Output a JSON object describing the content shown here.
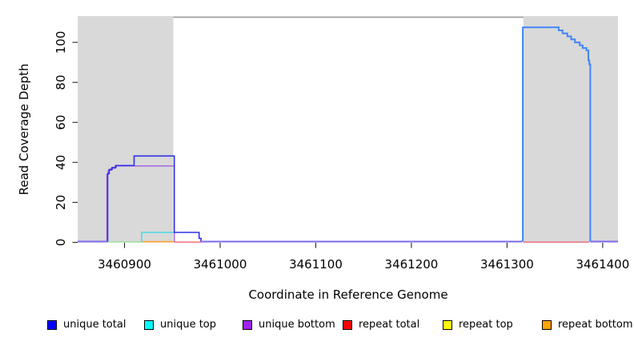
{
  "chart_data": {
    "type": "line",
    "step": true,
    "title": "",
    "xlabel": "Coordinate in Reference Genome",
    "ylabel": "Read Coverage Depth",
    "xlim": [
      3460851,
      3461416
    ],
    "ylim": [
      0,
      113
    ],
    "x_ticks": [
      3460900,
      3461000,
      3461100,
      3461200,
      3461300,
      3461400
    ],
    "y_ticks": [
      0,
      20,
      40,
      60,
      80,
      100
    ],
    "grid": false,
    "legend_position": "bottom",
    "colors": {
      "plot_shade": "#d9d9d9",
      "frame_line": "#909090",
      "axis": "#262626",
      "text": "#000000"
    },
    "shaded_regions": [
      {
        "name": "left-repeat-shade",
        "x0": 3460851,
        "x1": 3460951,
        "color": "#d9d9d9"
      },
      {
        "name": "right-repeat-shade",
        "x0": 3461317,
        "x1": 3461416,
        "color": "#d9d9d9"
      }
    ],
    "frame_top_line": {
      "x0": 3460951,
      "x1": 3461317,
      "y": 112.6,
      "color": "#909090"
    },
    "series": [
      {
        "name": "unique-top-repeat-top-blend-baseline",
        "color": "#8fdc8f",
        "width": 1.3,
        "points": [
          [
            3460882,
            0.2
          ],
          [
            3460919,
            0.2
          ]
        ]
      },
      {
        "name": "repeat-bottom",
        "color": "#ff9d2e",
        "width": 1.6,
        "points": [
          [
            3460919,
            0.3
          ],
          [
            3460952,
            0.3
          ]
        ]
      },
      {
        "name": "repeat-total-left",
        "color": "#e8566a",
        "width": 1.3,
        "points": [
          [
            3460952,
            0.15
          ],
          [
            3460980,
            0.15
          ]
        ]
      },
      {
        "name": "repeat-total-right",
        "color": "#e8566a",
        "width": 1.3,
        "points": [
          [
            3461317,
            0.15
          ],
          [
            3461386,
            0.15
          ]
        ]
      },
      {
        "name": "unique-top",
        "color": "#45d9e6",
        "width": 1.5,
        "points": [
          [
            3460918,
            0.3
          ],
          [
            3460918,
            5
          ],
          [
            3460952,
            5
          ]
        ]
      },
      {
        "name": "unique-bottom",
        "color": "#a868e6",
        "width": 1.5,
        "points": [
          [
            3460881.6,
            0
          ],
          [
            3460881.6,
            34
          ],
          [
            3460883,
            34
          ],
          [
            3460883,
            36
          ],
          [
            3460886,
            36
          ],
          [
            3460886,
            37
          ],
          [
            3460890,
            37
          ],
          [
            3460890,
            38.2
          ],
          [
            3460952,
            38.2
          ],
          [
            3460952,
            0
          ]
        ]
      },
      {
        "name": "unique-total-left",
        "color": "#2f2fe8",
        "width": 1.6,
        "points": [
          [
            3460882.4,
            0.4
          ],
          [
            3460882.4,
            34.4
          ],
          [
            3460884,
            34.4
          ],
          [
            3460884,
            36.4
          ],
          [
            3460887,
            36.4
          ],
          [
            3460887,
            37.4
          ],
          [
            3460891,
            37.4
          ],
          [
            3460891,
            38.4
          ],
          [
            3460910,
            38.4
          ],
          [
            3460910,
            43.2
          ],
          [
            3460952,
            43.2
          ],
          [
            3460952,
            5
          ],
          [
            3460978,
            5
          ],
          [
            3460978,
            2
          ],
          [
            3460980,
            2
          ],
          [
            3460980,
            0.4
          ]
        ]
      },
      {
        "name": "overlap-baseline-left",
        "color": "#7a68ee",
        "width": 2,
        "points": [
          [
            3460851,
            0.4
          ],
          [
            3460882,
            0.4
          ]
        ]
      },
      {
        "name": "overlap-baseline-mid",
        "color": "#7a68ee",
        "width": 2,
        "points": [
          [
            3460980,
            0.4
          ],
          [
            3461316,
            0.4
          ]
        ]
      },
      {
        "name": "overlap-baseline-right",
        "color": "#7a68ee",
        "width": 2,
        "points": [
          [
            3461387,
            0.4
          ],
          [
            3461416,
            0.4
          ]
        ]
      },
      {
        "name": "unique-total-right",
        "color": "#4285f4",
        "width": 2,
        "points": [
          [
            3461316.5,
            0.4
          ],
          [
            3461316.5,
            107.5
          ],
          [
            3461354,
            107.5
          ],
          [
            3461354,
            106
          ],
          [
            3461358,
            106
          ],
          [
            3461358,
            104.5
          ],
          [
            3461363,
            104.5
          ],
          [
            3461363,
            103
          ],
          [
            3461367,
            103
          ],
          [
            3461367,
            101.5
          ],
          [
            3461371,
            101.5
          ],
          [
            3461371,
            100
          ],
          [
            3461376,
            100
          ],
          [
            3461376,
            98.5
          ],
          [
            3461379,
            98.5
          ],
          [
            3461379,
            97.2
          ],
          [
            3461383,
            97.2
          ],
          [
            3461383,
            96
          ],
          [
            3461385,
            96
          ],
          [
            3461385,
            91
          ],
          [
            3461386,
            91
          ],
          [
            3461386,
            89
          ],
          [
            3461387,
            89
          ],
          [
            3461387,
            0.4
          ]
        ]
      }
    ],
    "legend": [
      {
        "label": "unique total",
        "color": "#0000ff"
      },
      {
        "label": "unique top",
        "color": "#00ffff"
      },
      {
        "label": "unique bottom",
        "color": "#a020f0"
      },
      {
        "label": "repeat total",
        "color": "#ff0000"
      },
      {
        "label": "repeat top",
        "color": "#ffff00"
      },
      {
        "label": "repeat bottom",
        "color": "#ffa500"
      }
    ]
  }
}
